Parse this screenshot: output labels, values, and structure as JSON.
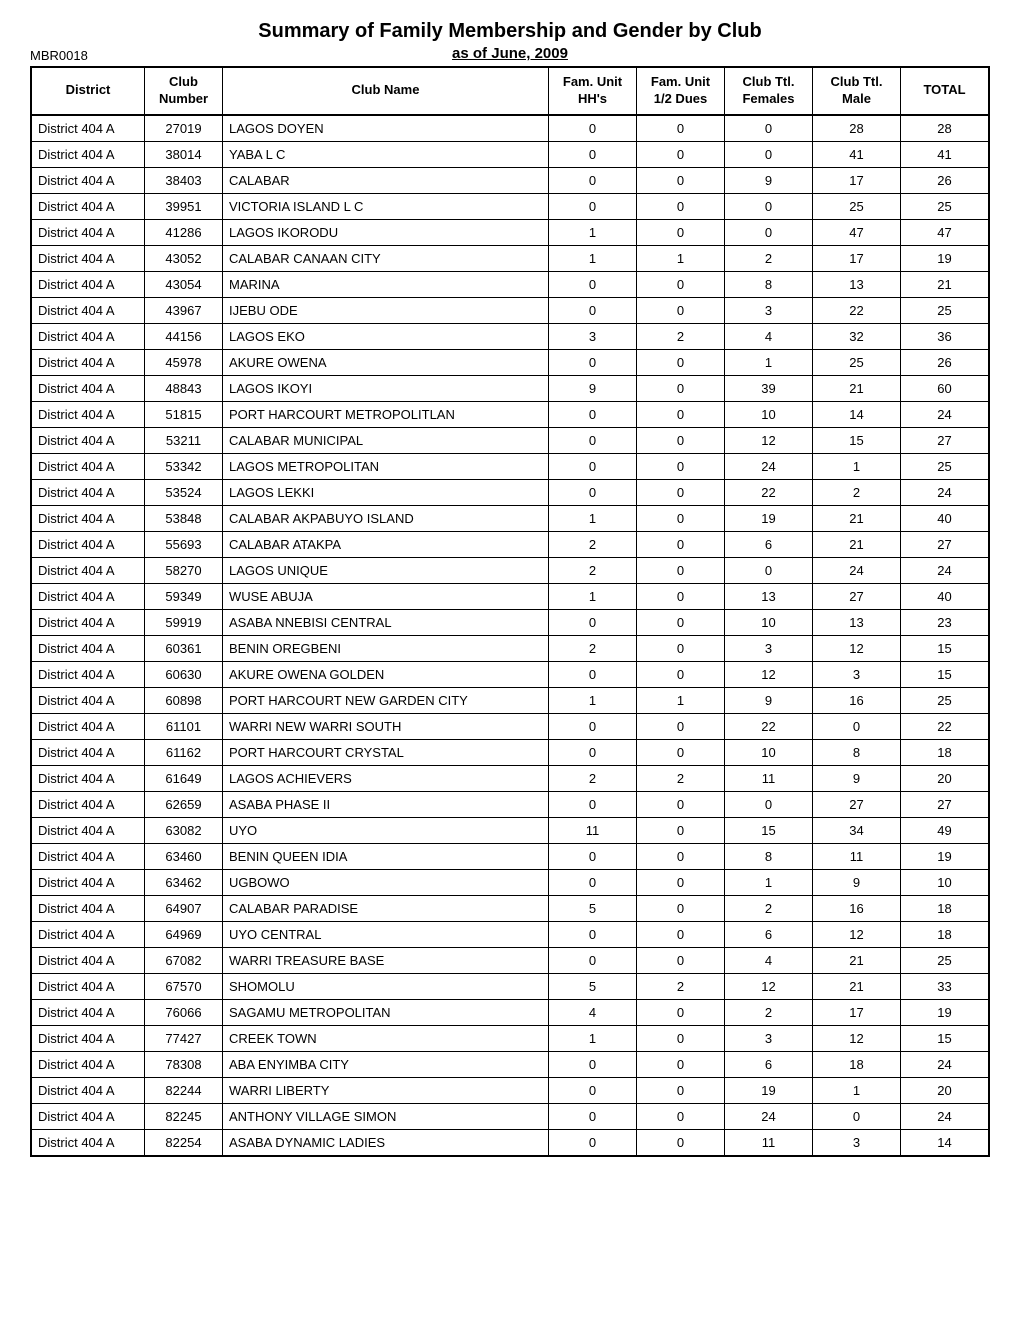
{
  "report_id": "MBR0018",
  "title": "Summary of Family Membership and Gender by Club",
  "subtitle": "as of June, 2009",
  "columns": [
    "District",
    "Club Number",
    "Club Name",
    "Fam. Unit HH's",
    "Fam. Unit 1/2 Dues",
    "Club Ttl. Females",
    "Club Ttl. Male",
    "TOTAL"
  ],
  "rows": [
    [
      "District 404 A",
      "27019",
      "LAGOS DOYEN",
      "0",
      "0",
      "0",
      "28",
      "28"
    ],
    [
      "District 404 A",
      "38014",
      "YABA L C",
      "0",
      "0",
      "0",
      "41",
      "41"
    ],
    [
      "District 404 A",
      "38403",
      "CALABAR",
      "0",
      "0",
      "9",
      "17",
      "26"
    ],
    [
      "District 404 A",
      "39951",
      "VICTORIA ISLAND L C",
      "0",
      "0",
      "0",
      "25",
      "25"
    ],
    [
      "District 404 A",
      "41286",
      "LAGOS IKORODU",
      "1",
      "0",
      "0",
      "47",
      "47"
    ],
    [
      "District 404 A",
      "43052",
      "CALABAR CANAAN CITY",
      "1",
      "1",
      "2",
      "17",
      "19"
    ],
    [
      "District 404 A",
      "43054",
      "MARINA",
      "0",
      "0",
      "8",
      "13",
      "21"
    ],
    [
      "District 404 A",
      "43967",
      "IJEBU ODE",
      "0",
      "0",
      "3",
      "22",
      "25"
    ],
    [
      "District 404 A",
      "44156",
      "LAGOS EKO",
      "3",
      "2",
      "4",
      "32",
      "36"
    ],
    [
      "District 404 A",
      "45978",
      "AKURE OWENA",
      "0",
      "0",
      "1",
      "25",
      "26"
    ],
    [
      "District 404 A",
      "48843",
      "LAGOS IKOYI",
      "9",
      "0",
      "39",
      "21",
      "60"
    ],
    [
      "District 404 A",
      "51815",
      "PORT HARCOURT METROPOLITLAN",
      "0",
      "0",
      "10",
      "14",
      "24"
    ],
    [
      "District 404 A",
      "53211",
      "CALABAR MUNICIPAL",
      "0",
      "0",
      "12",
      "15",
      "27"
    ],
    [
      "District 404 A",
      "53342",
      "LAGOS METROPOLITAN",
      "0",
      "0",
      "24",
      "1",
      "25"
    ],
    [
      "District 404 A",
      "53524",
      "LAGOS LEKKI",
      "0",
      "0",
      "22",
      "2",
      "24"
    ],
    [
      "District 404 A",
      "53848",
      "CALABAR AKPABUYO ISLAND",
      "1",
      "0",
      "19",
      "21",
      "40"
    ],
    [
      "District 404 A",
      "55693",
      "CALABAR ATAKPA",
      "2",
      "0",
      "6",
      "21",
      "27"
    ],
    [
      "District 404 A",
      "58270",
      "LAGOS UNIQUE",
      "2",
      "0",
      "0",
      "24",
      "24"
    ],
    [
      "District 404 A",
      "59349",
      "WUSE ABUJA",
      "1",
      "0",
      "13",
      "27",
      "40"
    ],
    [
      "District 404 A",
      "59919",
      "ASABA NNEBISI CENTRAL",
      "0",
      "0",
      "10",
      "13",
      "23"
    ],
    [
      "District 404 A",
      "60361",
      "BENIN OREGBENI",
      "2",
      "0",
      "3",
      "12",
      "15"
    ],
    [
      "District 404 A",
      "60630",
      "AKURE OWENA GOLDEN",
      "0",
      "0",
      "12",
      "3",
      "15"
    ],
    [
      "District 404 A",
      "60898",
      "PORT HARCOURT NEW GARDEN CITY",
      "1",
      "1",
      "9",
      "16",
      "25"
    ],
    [
      "District 404 A",
      "61101",
      "WARRI NEW WARRI SOUTH",
      "0",
      "0",
      "22",
      "0",
      "22"
    ],
    [
      "District 404 A",
      "61162",
      "PORT HARCOURT CRYSTAL",
      "0",
      "0",
      "10",
      "8",
      "18"
    ],
    [
      "District 404 A",
      "61649",
      "LAGOS ACHIEVERS",
      "2",
      "2",
      "11",
      "9",
      "20"
    ],
    [
      "District 404 A",
      "62659",
      "ASABA PHASE II",
      "0",
      "0",
      "0",
      "27",
      "27"
    ],
    [
      "District 404 A",
      "63082",
      "UYO",
      "11",
      "0",
      "15",
      "34",
      "49"
    ],
    [
      "District 404 A",
      "63460",
      "BENIN QUEEN IDIA",
      "0",
      "0",
      "8",
      "11",
      "19"
    ],
    [
      "District 404 A",
      "63462",
      "UGBOWO",
      "0",
      "0",
      "1",
      "9",
      "10"
    ],
    [
      "District 404 A",
      "64907",
      "CALABAR PARADISE",
      "5",
      "0",
      "2",
      "16",
      "18"
    ],
    [
      "District 404 A",
      "64969",
      "UYO CENTRAL",
      "0",
      "0",
      "6",
      "12",
      "18"
    ],
    [
      "District 404 A",
      "67082",
      "WARRI TREASURE BASE",
      "0",
      "0",
      "4",
      "21",
      "25"
    ],
    [
      "District 404 A",
      "67570",
      "SHOMOLU",
      "5",
      "2",
      "12",
      "21",
      "33"
    ],
    [
      "District 404 A",
      "76066",
      "SAGAMU METROPOLITAN",
      "4",
      "0",
      "2",
      "17",
      "19"
    ],
    [
      "District 404 A",
      "77427",
      "CREEK TOWN",
      "1",
      "0",
      "3",
      "12",
      "15"
    ],
    [
      "District 404 A",
      "78308",
      "ABA ENYIMBA CITY",
      "0",
      "0",
      "6",
      "18",
      "24"
    ],
    [
      "District 404 A",
      "82244",
      "WARRI LIBERTY",
      "0",
      "0",
      "19",
      "1",
      "20"
    ],
    [
      "District 404 A",
      "82245",
      "ANTHONY VILLAGE SIMON",
      "0",
      "0",
      "24",
      "0",
      "24"
    ],
    [
      "District 404 A",
      "82254",
      "ASABA DYNAMIC LADIES",
      "0",
      "0",
      "11",
      "3",
      "14"
    ]
  ]
}
